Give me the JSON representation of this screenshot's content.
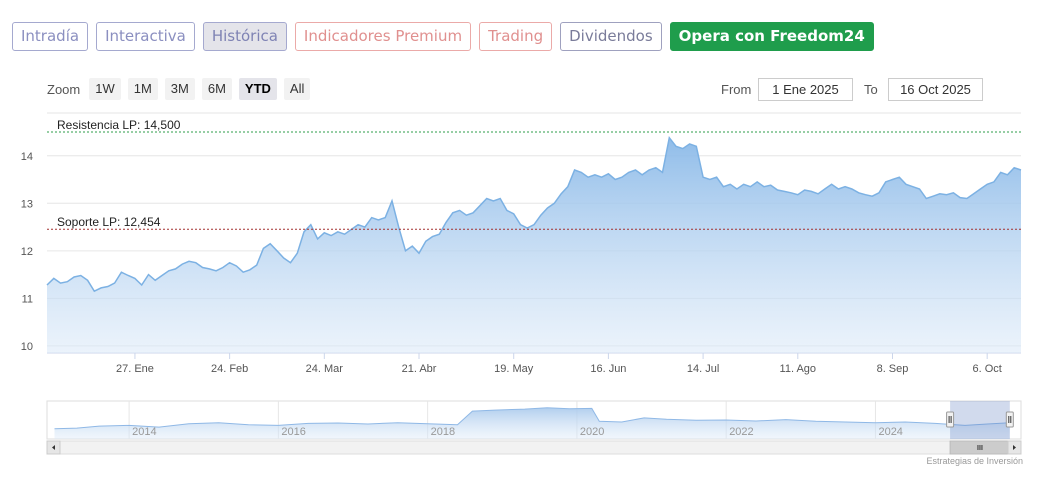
{
  "tabs": [
    {
      "label": "Intradía",
      "style": "blue"
    },
    {
      "label": "Interactiva",
      "style": "blue"
    },
    {
      "label": "Histórica",
      "style": "active"
    },
    {
      "label": "Indicadores Premium",
      "style": "red"
    },
    {
      "label": "Trading",
      "style": "red"
    },
    {
      "label": "Dividendos",
      "style": "gray"
    },
    {
      "label": "Opera con Freedom24",
      "style": "green"
    }
  ],
  "toolbar": {
    "zoom_label": "Zoom",
    "zoom_options": [
      "1W",
      "1M",
      "3M",
      "6M",
      "YTD",
      "All"
    ],
    "zoom_selected": "YTD",
    "from_label": "From",
    "from_value": "1 Ene 2025",
    "to_label": "To",
    "to_value": "16 Oct 2025"
  },
  "credit": "Estrategias de Inversión",
  "colors": {
    "line": "#7cb1e3",
    "fill_top": "#8ab9e8",
    "resistance": "#2e9e48",
    "support": "#a33030"
  },
  "chart_data": {
    "type": "area",
    "y_ticks": [
      10,
      11,
      12,
      13,
      14
    ],
    "ylim": [
      9.85,
      14.9
    ],
    "x_ticks": [
      "27. Ene",
      "24. Feb",
      "24. Mar",
      "21. Abr",
      "19. May",
      "16. Jun",
      "14. Jul",
      "11. Ago",
      "8. Sep",
      "6. Oct"
    ],
    "x_tick_dates": [
      "2025-01-27",
      "2025-02-24",
      "2025-03-24",
      "2025-04-21",
      "2025-05-19",
      "2025-06-16",
      "2025-07-14",
      "2025-08-11",
      "2025-09-08",
      "2025-10-06"
    ],
    "xlim": [
      "2025-01-01",
      "2025-10-16"
    ],
    "grid": true,
    "annotations": [
      {
        "label": "Resistencia LP: 14,500",
        "value": 14.5,
        "style": "dashed",
        "color": "resistance"
      },
      {
        "label": "Soporte LP: 12,454",
        "value": 12.454,
        "style": "dashed",
        "color": "support"
      }
    ],
    "series": [
      {
        "points": [
          [
            "2025-01-01",
            11.28
          ],
          [
            "2025-01-03",
            11.42
          ],
          [
            "2025-01-05",
            11.32
          ],
          [
            "2025-01-07",
            11.35
          ],
          [
            "2025-01-09",
            11.45
          ],
          [
            "2025-01-11",
            11.48
          ],
          [
            "2025-01-13",
            11.38
          ],
          [
            "2025-01-15",
            11.15
          ],
          [
            "2025-01-17",
            11.22
          ],
          [
            "2025-01-19",
            11.25
          ],
          [
            "2025-01-21",
            11.32
          ],
          [
            "2025-01-23",
            11.55
          ],
          [
            "2025-01-25",
            11.48
          ],
          [
            "2025-01-27",
            11.42
          ],
          [
            "2025-01-29",
            11.28
          ],
          [
            "2025-01-31",
            11.5
          ],
          [
            "2025-02-02",
            11.38
          ],
          [
            "2025-02-04",
            11.48
          ],
          [
            "2025-02-06",
            11.58
          ],
          [
            "2025-02-08",
            11.62
          ],
          [
            "2025-02-10",
            11.72
          ],
          [
            "2025-02-12",
            11.78
          ],
          [
            "2025-02-14",
            11.75
          ],
          [
            "2025-02-16",
            11.65
          ],
          [
            "2025-02-18",
            11.62
          ],
          [
            "2025-02-20",
            11.58
          ],
          [
            "2025-02-22",
            11.65
          ],
          [
            "2025-02-24",
            11.75
          ],
          [
            "2025-02-26",
            11.68
          ],
          [
            "2025-02-28",
            11.55
          ],
          [
            "2025-03-02",
            11.6
          ],
          [
            "2025-03-04",
            11.7
          ],
          [
            "2025-03-06",
            12.05
          ],
          [
            "2025-03-08",
            12.15
          ],
          [
            "2025-03-10",
            12.0
          ],
          [
            "2025-03-12",
            11.85
          ],
          [
            "2025-03-14",
            11.75
          ],
          [
            "2025-03-16",
            11.95
          ],
          [
            "2025-03-18",
            12.4
          ],
          [
            "2025-03-20",
            12.55
          ],
          [
            "2025-03-22",
            12.25
          ],
          [
            "2025-03-24",
            12.38
          ],
          [
            "2025-03-26",
            12.32
          ],
          [
            "2025-03-28",
            12.4
          ],
          [
            "2025-03-30",
            12.35
          ],
          [
            "2025-04-01",
            12.45
          ],
          [
            "2025-04-03",
            12.55
          ],
          [
            "2025-04-05",
            12.5
          ],
          [
            "2025-04-07",
            12.7
          ],
          [
            "2025-04-09",
            12.65
          ],
          [
            "2025-04-11",
            12.7
          ],
          [
            "2025-04-13",
            13.05
          ],
          [
            "2025-04-15",
            12.5
          ],
          [
            "2025-04-17",
            12.0
          ],
          [
            "2025-04-19",
            12.1
          ],
          [
            "2025-04-21",
            11.95
          ],
          [
            "2025-04-23",
            12.2
          ],
          [
            "2025-04-25",
            12.3
          ],
          [
            "2025-04-27",
            12.35
          ],
          [
            "2025-04-29",
            12.6
          ],
          [
            "2025-05-01",
            12.8
          ],
          [
            "2025-05-03",
            12.85
          ],
          [
            "2025-05-05",
            12.75
          ],
          [
            "2025-05-07",
            12.8
          ],
          [
            "2025-05-09",
            12.95
          ],
          [
            "2025-05-11",
            13.1
          ],
          [
            "2025-05-13",
            13.05
          ],
          [
            "2025-05-15",
            13.1
          ],
          [
            "2025-05-17",
            12.85
          ],
          [
            "2025-05-19",
            12.78
          ],
          [
            "2025-05-21",
            12.55
          ],
          [
            "2025-05-23",
            12.48
          ],
          [
            "2025-05-25",
            12.55
          ],
          [
            "2025-05-27",
            12.75
          ],
          [
            "2025-05-29",
            12.9
          ],
          [
            "2025-05-31",
            13.0
          ],
          [
            "2025-06-02",
            13.2
          ],
          [
            "2025-06-04",
            13.35
          ],
          [
            "2025-06-06",
            13.7
          ],
          [
            "2025-06-08",
            13.65
          ],
          [
            "2025-06-10",
            13.55
          ],
          [
            "2025-06-12",
            13.6
          ],
          [
            "2025-06-14",
            13.55
          ],
          [
            "2025-06-16",
            13.62
          ],
          [
            "2025-06-18",
            13.5
          ],
          [
            "2025-06-20",
            13.55
          ],
          [
            "2025-06-22",
            13.65
          ],
          [
            "2025-06-24",
            13.7
          ],
          [
            "2025-06-26",
            13.6
          ],
          [
            "2025-06-28",
            13.7
          ],
          [
            "2025-06-30",
            13.75
          ],
          [
            "2025-07-02",
            13.65
          ],
          [
            "2025-07-04",
            14.38
          ],
          [
            "2025-07-06",
            14.2
          ],
          [
            "2025-07-08",
            14.15
          ],
          [
            "2025-07-10",
            14.25
          ],
          [
            "2025-07-12",
            14.2
          ],
          [
            "2025-07-14",
            13.55
          ],
          [
            "2025-07-16",
            13.5
          ],
          [
            "2025-07-18",
            13.55
          ],
          [
            "2025-07-20",
            13.35
          ],
          [
            "2025-07-22",
            13.4
          ],
          [
            "2025-07-24",
            13.3
          ],
          [
            "2025-07-26",
            13.4
          ],
          [
            "2025-07-28",
            13.35
          ],
          [
            "2025-07-30",
            13.45
          ],
          [
            "2025-08-01",
            13.35
          ],
          [
            "2025-08-03",
            13.38
          ],
          [
            "2025-08-05",
            13.28
          ],
          [
            "2025-08-07",
            13.25
          ],
          [
            "2025-08-09",
            13.22
          ],
          [
            "2025-08-11",
            13.18
          ],
          [
            "2025-08-13",
            13.28
          ],
          [
            "2025-08-15",
            13.25
          ],
          [
            "2025-08-17",
            13.2
          ],
          [
            "2025-08-19",
            13.3
          ],
          [
            "2025-08-21",
            13.4
          ],
          [
            "2025-08-23",
            13.3
          ],
          [
            "2025-08-25",
            13.35
          ],
          [
            "2025-08-27",
            13.3
          ],
          [
            "2025-08-29",
            13.22
          ],
          [
            "2025-08-31",
            13.18
          ],
          [
            "2025-09-02",
            13.15
          ],
          [
            "2025-09-04",
            13.22
          ],
          [
            "2025-09-06",
            13.45
          ],
          [
            "2025-09-08",
            13.5
          ],
          [
            "2025-09-10",
            13.55
          ],
          [
            "2025-09-12",
            13.4
          ],
          [
            "2025-09-14",
            13.35
          ],
          [
            "2025-09-16",
            13.3
          ],
          [
            "2025-09-18",
            13.1
          ],
          [
            "2025-09-20",
            13.15
          ],
          [
            "2025-09-22",
            13.2
          ],
          [
            "2025-09-24",
            13.18
          ],
          [
            "2025-09-26",
            13.22
          ],
          [
            "2025-09-28",
            13.12
          ],
          [
            "2025-09-30",
            13.1
          ],
          [
            "2025-10-02",
            13.2
          ],
          [
            "2025-10-04",
            13.3
          ],
          [
            "2025-10-06",
            13.4
          ],
          [
            "2025-10-08",
            13.45
          ],
          [
            "2025-10-10",
            13.65
          ],
          [
            "2025-10-12",
            13.6
          ],
          [
            "2025-10-14",
            13.75
          ],
          [
            "2025-10-16",
            13.7
          ]
        ]
      }
    ],
    "navigator": {
      "ticks": [
        "2014",
        "2016",
        "2018",
        "2020",
        "2022",
        "2024"
      ],
      "points": [
        [
          2013.0,
          0.3
        ],
        [
          2013.3,
          0.32
        ],
        [
          2013.6,
          0.38
        ],
        [
          2014.0,
          0.4
        ],
        [
          2014.4,
          0.35
        ],
        [
          2014.8,
          0.45
        ],
        [
          2015.2,
          0.48
        ],
        [
          2015.6,
          0.42
        ],
        [
          2016.0,
          0.4
        ],
        [
          2016.4,
          0.46
        ],
        [
          2016.8,
          0.47
        ],
        [
          2017.2,
          0.44
        ],
        [
          2017.6,
          0.48
        ],
        [
          2018.0,
          0.45
        ],
        [
          2018.4,
          0.42
        ],
        [
          2018.6,
          0.82
        ],
        [
          2018.9,
          0.85
        ],
        [
          2019.3,
          0.88
        ],
        [
          2019.6,
          0.92
        ],
        [
          2019.9,
          0.89
        ],
        [
          2020.2,
          0.9
        ],
        [
          2020.3,
          0.52
        ],
        [
          2020.6,
          0.5
        ],
        [
          2020.9,
          0.62
        ],
        [
          2021.2,
          0.58
        ],
        [
          2021.6,
          0.55
        ],
        [
          2022.0,
          0.56
        ],
        [
          2022.4,
          0.53
        ],
        [
          2022.8,
          0.57
        ],
        [
          2023.2,
          0.52
        ],
        [
          2023.6,
          0.5
        ],
        [
          2024.0,
          0.48
        ],
        [
          2024.4,
          0.5
        ],
        [
          2024.8,
          0.46
        ],
        [
          2025.2,
          0.4
        ],
        [
          2025.5,
          0.44
        ],
        [
          2025.8,
          0.48
        ]
      ],
      "xlim": [
        2012.9,
        2025.95
      ],
      "window": [
        2025.0,
        2025.8
      ]
    }
  }
}
